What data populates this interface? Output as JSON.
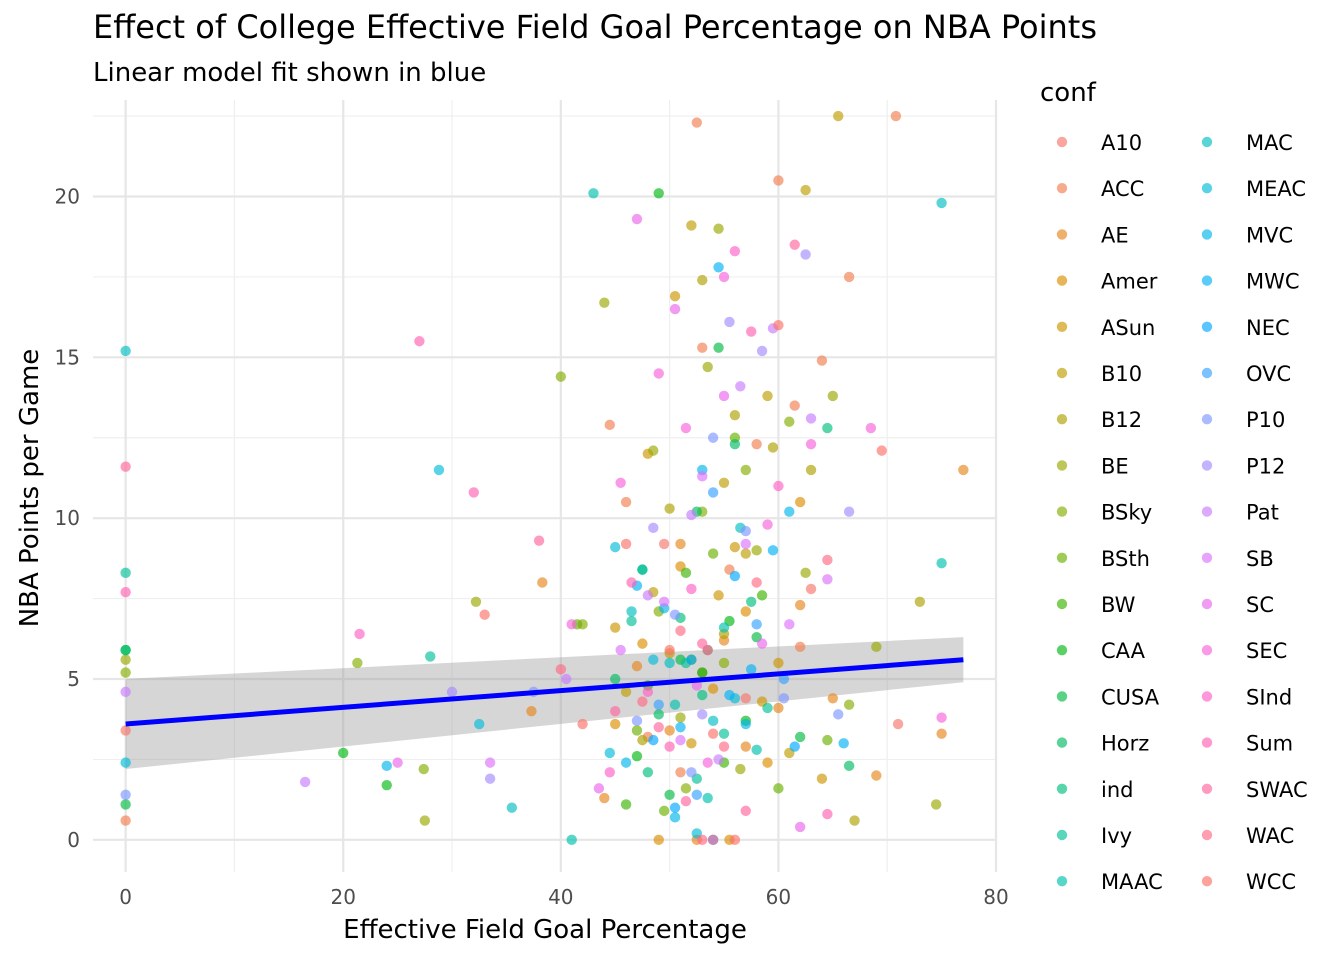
{
  "chart_data": {
    "type": "scatter",
    "title": "Effect of College Effective Field Goal Percentage on NBA Points",
    "subtitle": "Linear model fit shown in blue",
    "xlabel": "Effective Field Goal Percentage",
    "ylabel": "NBA Points per Game",
    "xlim": [
      -3,
      80
    ],
    "ylim": [
      -1,
      23
    ],
    "x_ticks": [
      0,
      20,
      40,
      60,
      80
    ],
    "y_ticks": [
      0,
      5,
      10,
      15,
      20
    ],
    "x_tick_labels": [
      "0",
      "20",
      "40",
      "60",
      "80"
    ],
    "y_tick_labels": [
      "0",
      "5",
      "10",
      "15",
      "20"
    ],
    "grid": true,
    "legend_title": "conf",
    "legend_position": "right",
    "legend_columns": 2,
    "point_opacity": 0.65,
    "trend_line": {
      "type": "linear model",
      "color": "#0000ff",
      "x": [
        0,
        77
      ],
      "y": [
        3.6,
        5.6
      ],
      "ci_lower": [
        2.2,
        4.9
      ],
      "ci_upper": [
        5.0,
        6.3
      ]
    },
    "series": [
      {
        "name": "A10",
        "color": "#F8766D",
        "x": [
          0,
          49.5,
          57,
          63,
          71
        ],
        "y": [
          3.4,
          9.2,
          4.4,
          7.8,
          3.6
        ]
      },
      {
        "name": "ACC",
        "color": "#F17E4E",
        "x": [
          0,
          52.5,
          60,
          66.5,
          70.8,
          44.5,
          53,
          58,
          61.5,
          64,
          48,
          55.5,
          62,
          46,
          51
        ],
        "y": [
          0.6,
          22.3,
          20.5,
          17.5,
          22.5,
          12.9,
          15.3,
          12.3,
          13.5,
          14.9,
          3.2,
          8.4,
          6.0,
          10.5,
          2.1
        ]
      },
      {
        "name": "AE",
        "color": "#E7861B",
        "x": [
          38.3,
          37.3,
          47,
          50,
          52.5,
          55,
          57,
          60,
          62,
          65,
          69,
          75,
          77,
          44,
          51
        ],
        "y": [
          8.0,
          4.0,
          5.4,
          3.4,
          0.0,
          6.2,
          2.9,
          4.1,
          7.3,
          4.4,
          2.0,
          3.3,
          11.5,
          1.3,
          9.2
        ]
      },
      {
        "name": "Amer",
        "color": "#DB8E00",
        "x": [
          49,
          53,
          57,
          62,
          45,
          51,
          55.5,
          59,
          47.5,
          54
        ],
        "y": [
          0.0,
          5.2,
          7.1,
          10.5,
          3.6,
          8.5,
          0.0,
          2.4,
          6.1,
          4.7
        ]
      },
      {
        "name": "ASun",
        "color": "#CE9500",
        "x": [
          45,
          48,
          52,
          56,
          60,
          64,
          50.5,
          54.5,
          58.5
        ],
        "y": [
          6.6,
          12.0,
          3.0,
          9.1,
          5.5,
          1.9,
          16.9,
          7.6,
          4.3
        ]
      },
      {
        "name": "B10",
        "color": "#BE9C00",
        "x": [
          65.5,
          62.5,
          59,
          55,
          52,
          48.5,
          46,
          57,
          61,
          50
        ],
        "y": [
          22.5,
          20.2,
          13.8,
          11.1,
          19.1,
          7.7,
          4.6,
          8.9,
          2.7,
          5.8
        ]
      },
      {
        "name": "B12",
        "color": "#AEA200",
        "x": [
          53,
          56,
          59.5,
          63,
          67,
          73,
          50,
          47.5,
          55
        ],
        "y": [
          17.4,
          13.2,
          12.2,
          11.5,
          0.6,
          7.4,
          10.3,
          3.1,
          6.4
        ]
      },
      {
        "name": "BE",
        "color": "#9AA800",
        "x": [
          0,
          27.5,
          32.2,
          44,
          48.5,
          53.5,
          54.5,
          58,
          62.5,
          65,
          69,
          74.5,
          51,
          56.5
        ],
        "y": [
          5.6,
          0.6,
          7.4,
          16.7,
          12.1,
          14.7,
          19.0,
          9.0,
          8.3,
          13.8,
          6.0,
          1.1,
          3.8,
          2.2
        ]
      },
      {
        "name": "BSky",
        "color": "#84AD00",
        "x": [
          0,
          21.3,
          27.4,
          40,
          42,
          49,
          53,
          57,
          61,
          66.5,
          51.5,
          55
        ],
        "y": [
          5.2,
          5.5,
          2.2,
          14.4,
          6.7,
          7.1,
          10.2,
          11.5,
          13.0,
          4.2,
          1.6,
          5.5
        ]
      },
      {
        "name": "BSth",
        "color": "#68B100",
        "x": [
          41.5,
          47,
          52,
          56,
          60,
          64.5,
          49.5,
          54
        ],
        "y": [
          6.7,
          3.4,
          5.6,
          12.5,
          1.6,
          3.1,
          0.9,
          8.9
        ]
      },
      {
        "name": "BW",
        "color": "#3AB400",
        "x": [
          48,
          51.5,
          55,
          58.5,
          46,
          53.5
        ],
        "y": [
          4.8,
          8.3,
          2.4,
          7.6,
          1.1,
          5.9
        ]
      },
      {
        "name": "CAA",
        "color": "#00B813",
        "x": [
          0,
          20,
          24,
          49,
          53,
          57,
          47,
          55.5
        ],
        "y": [
          5.9,
          2.7,
          1.7,
          20.1,
          5.2,
          3.7,
          2.6,
          6.8
        ]
      },
      {
        "name": "CUSA",
        "color": "#00BA42",
        "x": [
          0,
          47.5,
          51,
          54.5,
          58,
          62,
          50
        ],
        "y": [
          1.1,
          8.4,
          5.6,
          15.3,
          6.3,
          3.2,
          1.4
        ]
      },
      {
        "name": "Horz",
        "color": "#00BC62",
        "x": [
          45,
          49,
          52.5,
          56,
          66.5,
          54
        ],
        "y": [
          5.0,
          3.9,
          10.2,
          12.3,
          2.3,
          0.0
        ]
      },
      {
        "name": "ind",
        "color": "#00BE7D",
        "x": [
          0,
          48,
          53,
          57.5,
          64.5,
          51
        ],
        "y": [
          5.9,
          2.1,
          4.5,
          7.4,
          12.8,
          6.9
        ]
      },
      {
        "name": "Ivy",
        "color": "#00C096",
        "x": [
          0,
          28,
          46.5,
          51.5,
          55,
          59,
          52.5
        ],
        "y": [
          8.3,
          5.7,
          6.8,
          5.5,
          3.3,
          4.1,
          1.9
        ]
      },
      {
        "name": "MAAC",
        "color": "#00C0AE",
        "x": [
          43,
          41,
          47.5,
          50.5,
          55,
          58,
          75,
          53.5
        ],
        "y": [
          20.1,
          0.0,
          8.4,
          4.2,
          6.6,
          2.8,
          8.6,
          1.3
        ]
      },
      {
        "name": "MAC",
        "color": "#00BEC3",
        "x": [
          0,
          75,
          35.5,
          46.5,
          50,
          54,
          56.5
        ],
        "y": [
          15.2,
          19.8,
          1.0,
          7.1,
          5.5,
          3.7,
          9.7
        ]
      },
      {
        "name": "MEAC",
        "color": "#00BBD7",
        "x": [
          0,
          28.8,
          32.5,
          45,
          48.5,
          52.5,
          56,
          44.5
        ],
        "y": [
          2.4,
          11.5,
          3.6,
          9.1,
          5.6,
          0.2,
          4.4,
          2.7
        ]
      },
      {
        "name": "MVC",
        "color": "#00B6E9",
        "x": [
          24,
          46,
          49.5,
          53,
          57,
          61,
          50.5
        ],
        "y": [
          2.3,
          2.4,
          7.2,
          11.5,
          3.6,
          10.2,
          0.7
        ]
      },
      {
        "name": "MWC",
        "color": "#00B0F6",
        "x": [
          54.5,
          47,
          51,
          55.5,
          59.5,
          66,
          57.5
        ],
        "y": [
          17.8,
          7.9,
          3.5,
          4.5,
          9.0,
          3.0,
          5.3
        ]
      },
      {
        "name": "NEC",
        "color": "#00A8FF",
        "x": [
          48.5,
          52,
          56,
          61.5,
          50.5
        ],
        "y": [
          3.1,
          5.6,
          8.2,
          2.9,
          1.0
        ]
      },
      {
        "name": "OVC",
        "color": "#35A2FF",
        "x": [
          54,
          58,
          49,
          52.5,
          60.5
        ],
        "y": [
          10.8,
          6.7,
          4.2,
          1.4,
          5.0
        ]
      },
      {
        "name": "P10",
        "color": "#7C96FF",
        "x": [
          0,
          37.5,
          47,
          50.5,
          54,
          57,
          60.5,
          65.5,
          52
        ],
        "y": [
          1.4,
          4.6,
          3.7,
          7.0,
          12.5,
          9.6,
          4.4,
          3.9,
          2.1
        ]
      },
      {
        "name": "P12",
        "color": "#A58AFF",
        "x": [
          30,
          33.5,
          62.5,
          66.5,
          55.5,
          58.5,
          48.5,
          53
        ],
        "y": [
          4.6,
          1.9,
          18.2,
          10.2,
          16.1,
          15.2,
          9.7,
          3.9
        ]
      },
      {
        "name": "Pat",
        "color": "#C77CFF",
        "x": [
          0,
          16.5,
          40.5,
          48,
          52,
          56.5,
          59.5,
          63,
          54.5
        ],
        "y": [
          4.6,
          1.8,
          5.0,
          7.6,
          10.1,
          14.1,
          15.9,
          13.1,
          2.5
        ]
      },
      {
        "name": "SB",
        "color": "#DC71FA",
        "x": [
          33.5,
          45.5,
          49.5,
          53,
          57,
          61,
          64.5,
          51
        ],
        "y": [
          2.4,
          5.9,
          7.4,
          11.3,
          9.2,
          6.7,
          8.1,
          3.1
        ]
      },
      {
        "name": "SC",
        "color": "#EB66EC",
        "x": [
          25,
          47,
          50.5,
          55,
          58.5,
          43.5,
          52.5,
          62
        ],
        "y": [
          2.4,
          19.3,
          16.5,
          13.8,
          6.1,
          1.6,
          4.8,
          0.4
        ]
      },
      {
        "name": "SEC",
        "color": "#F663DB",
        "x": [
          41,
          45.5,
          49,
          51.5,
          55,
          59,
          63,
          68.5,
          75,
          53.5
        ],
        "y": [
          6.7,
          11.1,
          14.5,
          12.8,
          17.5,
          9.8,
          12.3,
          12.8,
          3.8,
          2.4
        ]
      },
      {
        "name": "SInd",
        "color": "#FD61C7",
        "x": [
          21.5,
          44.5,
          48,
          52,
          56,
          60,
          54
        ],
        "y": [
          6.4,
          2.1,
          4.6,
          7.8,
          18.3,
          11.0,
          0.0
        ]
      },
      {
        "name": "Sum",
        "color": "#FF62B2",
        "x": [
          0,
          27,
          32,
          46.5,
          50,
          53.5,
          57.5,
          64.5
        ],
        "y": [
          7.7,
          15.5,
          10.8,
          8.0,
          2.9,
          5.9,
          15.8,
          0.8
        ]
      },
      {
        "name": "SWAC",
        "color": "#FF659C",
        "x": [
          0,
          38,
          45,
          49,
          53,
          57,
          61.5,
          51.5
        ],
        "y": [
          11.6,
          9.3,
          4.0,
          3.5,
          6.1,
          0.9,
          18.5,
          1.2
        ]
      },
      {
        "name": "WAC",
        "color": "#FF6A84",
        "x": [
          40,
          47.5,
          51,
          55,
          58,
          64.5,
          53
        ],
        "y": [
          5.3,
          4.3,
          6.5,
          2.9,
          8.0,
          8.7,
          0.0
        ]
      },
      {
        "name": "WCC",
        "color": "#FC7069",
        "x": [
          33,
          42,
          46,
          50,
          54,
          60,
          69.5,
          56
        ],
        "y": [
          7.0,
          3.6,
          9.2,
          5.9,
          3.3,
          16.0,
          12.1,
          0.0
        ]
      }
    ]
  }
}
